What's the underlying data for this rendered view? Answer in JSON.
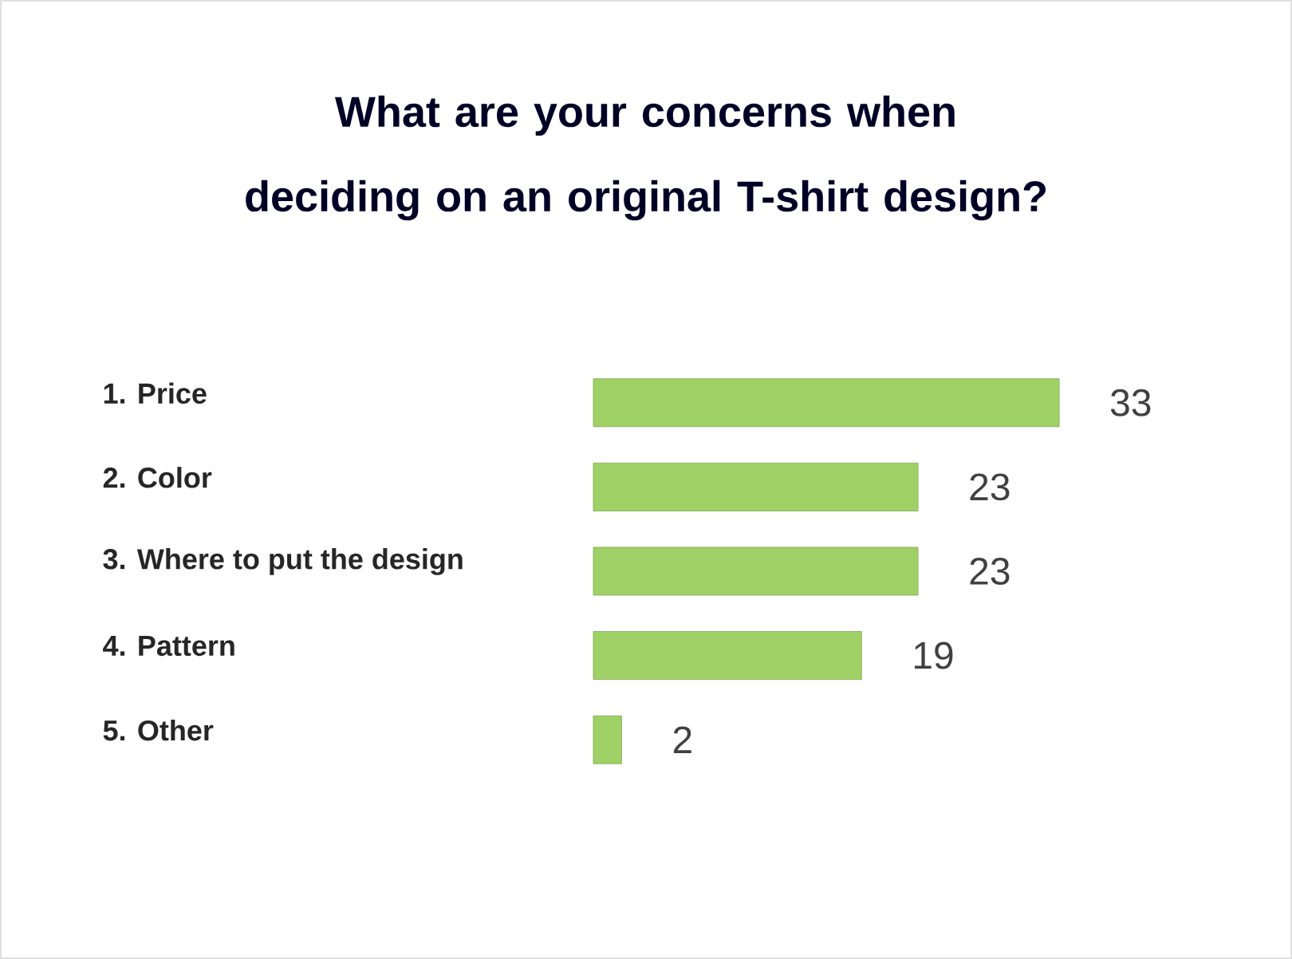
{
  "chart_data": {
    "type": "bar",
    "orientation": "horizontal",
    "title": "What are your concerns when deciding on an original T-shirt design?",
    "categories": [
      "1. Price",
      "2. Color",
      "3. Where to put the design",
      "4. Pattern",
      "5. Other"
    ],
    "values": [
      33,
      23,
      23,
      19,
      2
    ],
    "color": "#9fd166",
    "data_labels": true
  }
}
